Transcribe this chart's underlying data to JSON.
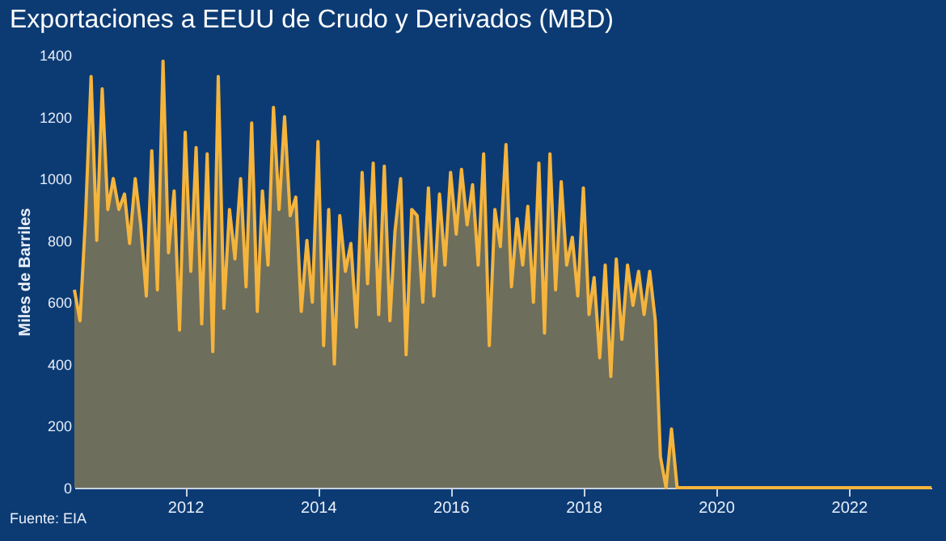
{
  "chart_data": {
    "type": "area",
    "title": "Exportaciones a EEUU de Crudo y Derivados (MBD)",
    "ylabel": "Miles de Barriles",
    "annotations": [
      "Fuente: EIA"
    ],
    "x": [
      "2010-05",
      "2010-06",
      "2010-07",
      "2010-08",
      "2010-09",
      "2010-10",
      "2010-11",
      "2010-12",
      "2011-01",
      "2011-02",
      "2011-03",
      "2011-04",
      "2011-05",
      "2011-06",
      "2011-07",
      "2011-08",
      "2011-09",
      "2011-10",
      "2011-11",
      "2011-12",
      "2012-01",
      "2012-02",
      "2012-03",
      "2012-04",
      "2012-05",
      "2012-06",
      "2012-07",
      "2012-08",
      "2012-09",
      "2012-10",
      "2012-11",
      "2012-12",
      "2013-01",
      "2013-02",
      "2013-03",
      "2013-04",
      "2013-05",
      "2013-06",
      "2013-07",
      "2013-08",
      "2013-09",
      "2013-10",
      "2013-11",
      "2013-12",
      "2014-01",
      "2014-02",
      "2014-03",
      "2014-04",
      "2014-05",
      "2014-06",
      "2014-07",
      "2014-08",
      "2014-09",
      "2014-10",
      "2014-11",
      "2014-12",
      "2015-01",
      "2015-02",
      "2015-03",
      "2015-04",
      "2015-05",
      "2015-06",
      "2015-07",
      "2015-08",
      "2015-09",
      "2015-10",
      "2015-11",
      "2015-12",
      "2016-01",
      "2016-02",
      "2016-03",
      "2016-04",
      "2016-05",
      "2016-06",
      "2016-07",
      "2016-08",
      "2016-09",
      "2016-10",
      "2016-11",
      "2016-12",
      "2017-01",
      "2017-02",
      "2017-03",
      "2017-04",
      "2017-05",
      "2017-06",
      "2017-07",
      "2017-08",
      "2017-09",
      "2017-10",
      "2017-11",
      "2017-12",
      "2018-01",
      "2018-02",
      "2018-03",
      "2018-04",
      "2018-05",
      "2018-06",
      "2018-07",
      "2018-08",
      "2018-09",
      "2018-10",
      "2018-11",
      "2018-12",
      "2019-01",
      "2019-02",
      "2019-03",
      "2019-04",
      "2019-05",
      "2019-06",
      "2019-07",
      "2023-04"
    ],
    "series": [
      {
        "color": "#f5b43c",
        "values": [
          640,
          540,
          870,
          1330,
          800,
          1290,
          900,
          1000,
          900,
          950,
          790,
          1000,
          850,
          620,
          1090,
          640,
          1380,
          760,
          960,
          510,
          1150,
          700,
          1100,
          530,
          1080,
          440,
          1330,
          580,
          900,
          740,
          1000,
          650,
          1180,
          570,
          960,
          720,
          1230,
          900,
          1200,
          880,
          940,
          570,
          800,
          600,
          1120,
          460,
          900,
          400,
          880,
          700,
          790,
          520,
          1020,
          660,
          1050,
          560,
          1040,
          540,
          830,
          1000,
          430,
          900,
          880,
          600,
          970,
          620,
          950,
          720,
          1020,
          820,
          1030,
          850,
          980,
          720,
          1080,
          460,
          900,
          780,
          1110,
          650,
          870,
          720,
          910,
          600,
          1050,
          500,
          1080,
          640,
          990,
          720,
          810,
          620,
          970,
          560,
          680,
          420,
          720,
          360,
          740,
          480,
          720,
          590,
          700,
          560,
          700,
          540,
          100,
          0,
          190,
          0,
          0,
          0
        ]
      }
    ],
    "xlim": [
      "2010-05",
      "2023-04"
    ],
    "xticks": [
      "2012",
      "2014",
      "2016",
      "2018",
      "2020",
      "2022"
    ],
    "ylim": [
      0,
      1400
    ],
    "yticks": [
      0,
      200,
      400,
      600,
      800,
      1000,
      1200,
      1400
    ],
    "grid": false
  }
}
